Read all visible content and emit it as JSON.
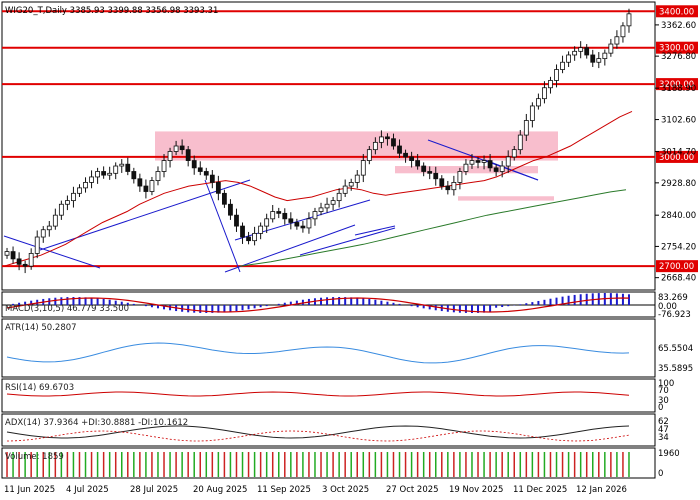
{
  "header": {
    "title": "WIG20_T,Daily  3385.93 3399.88 3356.98 3393.31"
  },
  "colors": {
    "bull": "#1a1a1a",
    "bear": "#1a1a1a",
    "level": "#e00000",
    "zone": "#f7b7c8",
    "ma_fast": "#cc0000",
    "ma_slow": "#2a7a2a",
    "trend": "#1a1acc",
    "macd_hist": "#1a1acc",
    "macd_signal": "#cc0000",
    "atr": "#3a8ce0",
    "rsi": "#cc0000",
    "adx": "#222222",
    "volume": "#22aa22"
  },
  "price_axis": {
    "ticks": [
      "3362.60",
      "3276.80",
      "3188.90",
      "3102.60",
      "3014.70",
      "2928.80",
      "2840.00",
      "2754.20",
      "2668.40"
    ],
    "levels": [
      "3400.00",
      "3300.00",
      "3200.00",
      "3000.00",
      "2700.00"
    ]
  },
  "indicators": {
    "macd": {
      "label": "MACD(3,10,5) 46.779 33.500",
      "ticks": [
        "83.269",
        "0.00",
        "-76.923"
      ]
    },
    "atr": {
      "label": "ATR(14) 50.2807",
      "ticks": [
        "65.5504",
        "35.5895"
      ]
    },
    "rsi": {
      "label": "RSI(14) 69.6703",
      "ticks": [
        "100",
        "70",
        "30",
        "0"
      ]
    },
    "adx": {
      "label": "ADX(14) 37.9364 +DI:30.8881 -DI:10.1612",
      "ticks": [
        "62",
        "47",
        "34"
      ]
    },
    "volume": {
      "label": "Volume: 1859",
      "ticks": [
        "1960",
        "0"
      ]
    }
  },
  "x_axis": {
    "labels": [
      "11 Jun 2025",
      "4 Jul 2025",
      "28 Jul 2025",
      "20 Aug 2025",
      "11 Sep 2025",
      "3 Oct 2025",
      "27 Oct 2025",
      "19 Nov 2025",
      "11 Dec 2025",
      "12 Jan 2026"
    ]
  },
  "chart_data": {
    "type": "candlestick",
    "symbol": "WIG20_T",
    "timeframe": "Daily",
    "last": {
      "open": 3385.93,
      "high": 3399.88,
      "low": 3356.98,
      "close": 3393.31
    },
    "ylim": [
      2640,
      3420
    ],
    "close_series": [
      2740,
      2720,
      2705,
      2700,
      2735,
      2780,
      2800,
      2810,
      2840,
      2870,
      2880,
      2900,
      2915,
      2930,
      2945,
      2960,
      2950,
      2955,
      2975,
      2980,
      2960,
      2940,
      2920,
      2905,
      2935,
      2960,
      2990,
      3015,
      3030,
      3020,
      2990,
      2970,
      2960,
      2950,
      2930,
      2900,
      2870,
      2840,
      2810,
      2780,
      2770,
      2790,
      2810,
      2830,
      2850,
      2845,
      2830,
      2820,
      2810,
      2805,
      2830,
      2850,
      2860,
      2870,
      2880,
      2900,
      2920,
      2930,
      2950,
      2990,
      3020,
      3040,
      3055,
      3050,
      3030,
      3010,
      3000,
      2990,
      2975,
      2960,
      2955,
      2940,
      2920,
      2910,
      2930,
      2960,
      2980,
      2990,
      2985,
      2990,
      2970,
      2960,
      2975,
      3000,
      3020,
      3060,
      3100,
      3140,
      3160,
      3190,
      3210,
      3240,
      3260,
      3280,
      3290,
      3300,
      3280,
      3260,
      3270,
      3285,
      3310,
      3330,
      3360,
      3393
    ],
    "ma_fast": [
      2700,
      2710,
      2720,
      2730,
      2745,
      2760,
      2780,
      2800,
      2820,
      2835,
      2850,
      2870,
      2885,
      2900,
      2910,
      2920,
      2925,
      2930,
      2935,
      2930,
      2920,
      2905,
      2890,
      2880,
      2885,
      2890,
      2900,
      2910,
      2915,
      2910,
      2900,
      2895,
      2900,
      2905,
      2910,
      2915,
      2920,
      2925,
      2930,
      2935,
      2945,
      2960,
      2975,
      2990,
      3000,
      3015,
      3030,
      3050,
      3070,
      3090,
      3110,
      3125
    ],
    "ma_slow": [
      2700,
      2706,
      2712,
      2720,
      2728,
      2736,
      2744,
      2752,
      2760,
      2770,
      2780,
      2790,
      2800,
      2810,
      2820,
      2830,
      2840,
      2848,
      2856,
      2864,
      2872,
      2880,
      2888,
      2896,
      2904,
      2910
    ],
    "zones": [
      {
        "from": 2990,
        "to": 3070
      },
      {
        "from": 2955,
        "to": 2975
      },
      {
        "from": 2880,
        "to": 2892
      }
    ]
  }
}
